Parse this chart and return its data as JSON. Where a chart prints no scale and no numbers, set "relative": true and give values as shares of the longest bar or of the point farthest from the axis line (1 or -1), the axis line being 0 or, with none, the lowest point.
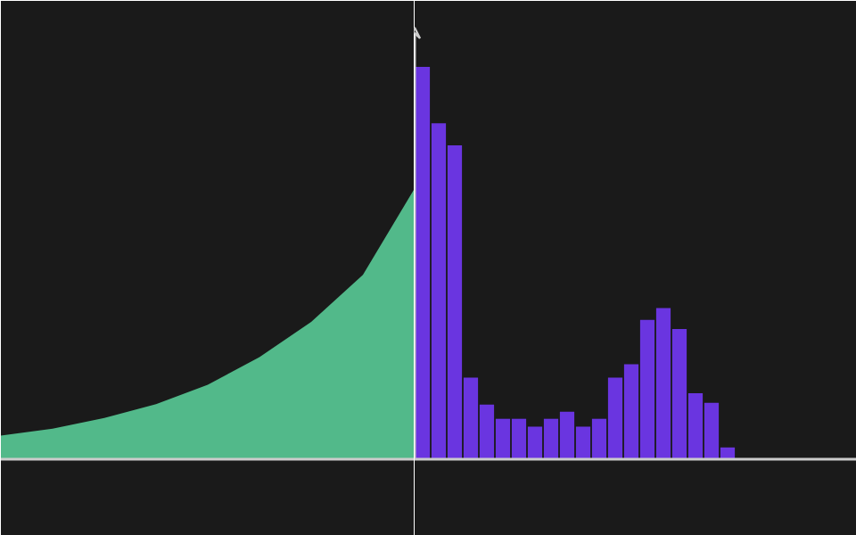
{
  "chart_data": [
    {
      "type": "area",
      "relative": true,
      "tick_labels": false,
      "color": "#52b98a",
      "categories": [
        null,
        null,
        null,
        null,
        null,
        null,
        null,
        null,
        null
      ],
      "values": [
        0.087,
        0.113,
        0.152,
        0.203,
        0.275,
        0.377,
        0.507,
        0.681,
        1
      ]
    },
    {
      "type": "bar",
      "relative": true,
      "tick_labels": false,
      "color": "#6a35e0",
      "categories": [
        null,
        null,
        null,
        null,
        null,
        null,
        null,
        null,
        null,
        null,
        null,
        null,
        null,
        null,
        null,
        null,
        null,
        null,
        null,
        null
      ],
      "values": [
        1,
        0.856,
        0.8,
        0.208,
        0.139,
        0.103,
        0.103,
        0.083,
        0.103,
        0.121,
        0.083,
        0.103,
        0.208,
        0.242,
        0.355,
        0.385,
        0.332,
        0.168,
        0.144,
        0.03
      ]
    }
  ]
}
